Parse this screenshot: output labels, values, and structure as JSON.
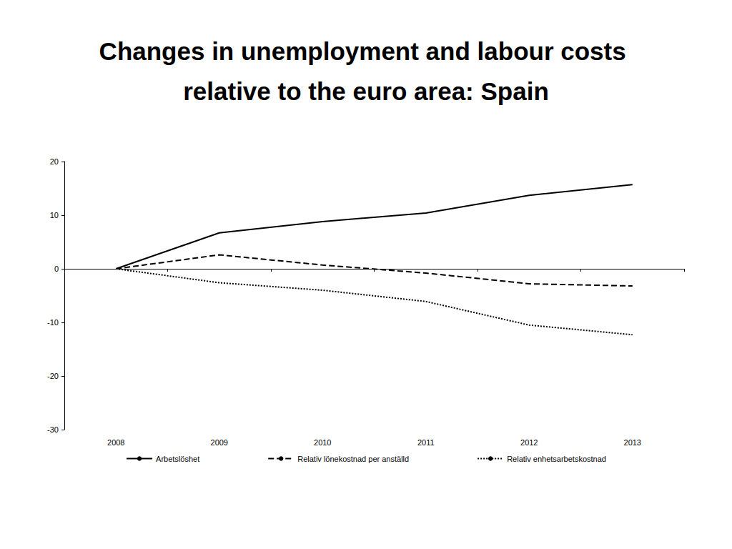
{
  "chart_data": {
    "type": "line",
    "title": "Changes in unemployment and labour costs relative to the euro area: Spain",
    "categories": [
      "2008",
      "2009",
      "2010",
      "2011",
      "2012",
      "2013"
    ],
    "series": [
      {
        "name": "Arbetslöshet",
        "color": "#000000",
        "line_style": "solid",
        "values": [
          0,
          6.7,
          8.8,
          10.4,
          13.7,
          15.7
        ]
      },
      {
        "name": "Relativ lönekostnad per anställd",
        "color": "#000000",
        "line_style": "dashed",
        "values": [
          0,
          2.6,
          0.7,
          -0.8,
          -2.8,
          -3.2
        ]
      },
      {
        "name": "Relativ enhetsarbetskostnad",
        "color": "#000000",
        "line_style": "dotted",
        "values": [
          0,
          -2.6,
          -4.0,
          -6.1,
          -10.5,
          -12.3
        ]
      }
    ],
    "ylim": [
      -30,
      20
    ],
    "yticks": [
      -30,
      -20,
      -10,
      0,
      10,
      20
    ],
    "grid": false,
    "legend": "bottom"
  }
}
